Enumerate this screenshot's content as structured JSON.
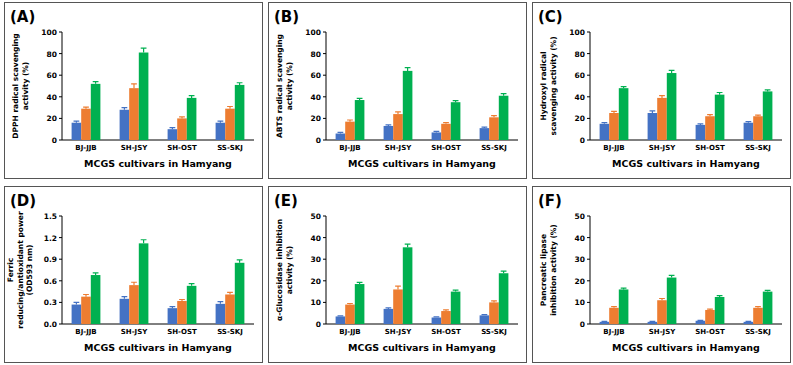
{
  "chart_data": [
    {
      "type": "bar",
      "title": "(A)",
      "x_label": "MCGS cultivars in Hamyang",
      "y_label": "DPPH radical scavenging activity (%)",
      "categories": [
        "BJ-JJB",
        "SH-JSY",
        "SH-OST",
        "SS-SKJ"
      ],
      "series": [
        {
          "color": "#4472c4",
          "values": [
            16,
            28,
            10,
            16
          ],
          "errors": [
            1.5,
            2,
            1.5,
            1.5
          ]
        },
        {
          "color": "#ed7d31",
          "values": [
            29,
            48,
            20,
            29
          ],
          "errors": [
            1.5,
            4,
            1.5,
            2
          ]
        },
        {
          "color": "#00b050",
          "values": [
            52,
            81,
            39,
            51
          ],
          "errors": [
            2,
            4,
            2,
            2
          ]
        }
      ],
      "ylim": [
        0,
        100
      ],
      "yticks": [
        0,
        20,
        40,
        60,
        80,
        100
      ]
    },
    {
      "type": "bar",
      "title": "(B)",
      "x_label": "MCGS cultivars in Hamyang",
      "y_label": "ABTS radical scavenging activity (%)",
      "categories": [
        "BJ-JJB",
        "SH-JSY",
        "SH-OST",
        "SS-SKJ"
      ],
      "series": [
        {
          "color": "#4472c4",
          "values": [
            6,
            13,
            7,
            11
          ],
          "errors": [
            1,
            1,
            1,
            1
          ]
        },
        {
          "color": "#ed7d31",
          "values": [
            17,
            24,
            15,
            21
          ],
          "errors": [
            1.5,
            2,
            1,
            1.5
          ]
        },
        {
          "color": "#00b050",
          "values": [
            37,
            64,
            35,
            41
          ],
          "errors": [
            1.5,
            3,
            1.5,
            2
          ]
        }
      ],
      "ylim": [
        0,
        100
      ],
      "yticks": [
        0,
        20,
        40,
        60,
        80,
        100
      ]
    },
    {
      "type": "bar",
      "title": "(C)",
      "x_label": "MCGS cultivars in Hamyang",
      "y_label": "Hydroxyl radical scavenging activity (%)",
      "categories": [
        "BJ-JJB",
        "SH-JSY",
        "SH-OST",
        "SS-SKJ"
      ],
      "series": [
        {
          "color": "#4472c4",
          "values": [
            15,
            25,
            14,
            16
          ],
          "errors": [
            1,
            2,
            1,
            1
          ]
        },
        {
          "color": "#ed7d31",
          "values": [
            25,
            39,
            22,
            22
          ],
          "errors": [
            1.5,
            2,
            1.5,
            1
          ]
        },
        {
          "color": "#00b050",
          "values": [
            48,
            62,
            42,
            45
          ],
          "errors": [
            1.5,
            2.5,
            2,
            1.5
          ]
        }
      ],
      "ylim": [
        0,
        100
      ],
      "yticks": [
        0,
        20,
        40,
        60,
        80,
        100
      ]
    },
    {
      "type": "bar",
      "title": "(D)",
      "x_label": "MCGS cultivars in Hamyang",
      "y_label": "Ferric reducing/antioxidant power (OD593 nm)",
      "categories": [
        "BJ-JJB",
        "SH-JSY",
        "SH-OST",
        "SS-SKJ"
      ],
      "series": [
        {
          "color": "#4472c4",
          "values": [
            0.27,
            0.35,
            0.22,
            0.28
          ],
          "errors": [
            0.03,
            0.03,
            0.02,
            0.03
          ]
        },
        {
          "color": "#ed7d31",
          "values": [
            0.38,
            0.54,
            0.32,
            0.41
          ],
          "errors": [
            0.03,
            0.04,
            0.02,
            0.03
          ]
        },
        {
          "color": "#00b050",
          "values": [
            0.68,
            1.12,
            0.53,
            0.85
          ],
          "errors": [
            0.03,
            0.05,
            0.03,
            0.04
          ]
        }
      ],
      "ylim": [
        0,
        1.5
      ],
      "yticks": [
        {
          "value": 0,
          "label": "0.0"
        },
        0.3,
        0.6,
        0.9,
        1.2,
        1.5
      ]
    },
    {
      "type": "bar",
      "title": "(E)",
      "x_label": "MCGS cultivars in Hamyang",
      "y_label": "α-Glucosidase inhibition activity (%)",
      "categories": [
        "BJ-JJB",
        "SH-JSY",
        "SH-OST",
        "SS-SKJ"
      ],
      "series": [
        {
          "color": "#4472c4",
          "values": [
            3.5,
            7,
            3,
            4
          ],
          "errors": [
            0.3,
            0.5,
            0.3,
            0.3
          ]
        },
        {
          "color": "#ed7d31",
          "values": [
            9,
            16,
            6,
            10
          ],
          "errors": [
            0.5,
            1.5,
            0.5,
            0.7
          ]
        },
        {
          "color": "#00b050",
          "values": [
            18.5,
            35.5,
            15,
            23.5
          ],
          "errors": [
            0.8,
            1.5,
            0.7,
            1
          ]
        }
      ],
      "ylim": [
        0,
        50
      ],
      "yticks": [
        0,
        10,
        20,
        30,
        40,
        50
      ]
    },
    {
      "type": "bar",
      "title": "(F)",
      "x_label": "MCGS cultivars in Hamyang",
      "y_label": "Pancreatic lipase inhibition activity (%)",
      "categories": [
        "BJ-JJB",
        "SH-JSY",
        "SH-OST",
        "SS-SKJ"
      ],
      "series": [
        {
          "color": "#4472c4",
          "values": [
            1,
            1,
            1.5,
            1
          ],
          "errors": [
            0.2,
            0.2,
            0.2,
            0.2
          ]
        },
        {
          "color": "#ed7d31",
          "values": [
            7.5,
            11,
            6.5,
            7.5
          ],
          "errors": [
            0.5,
            0.8,
            0.4,
            0.5
          ]
        },
        {
          "color": "#00b050",
          "values": [
            16,
            21.5,
            12.5,
            15
          ],
          "errors": [
            0.6,
            1,
            0.6,
            0.6
          ]
        }
      ],
      "ylim": [
        0,
        50
      ],
      "yticks": [
        0,
        10,
        20,
        30,
        40,
        50
      ]
    }
  ]
}
